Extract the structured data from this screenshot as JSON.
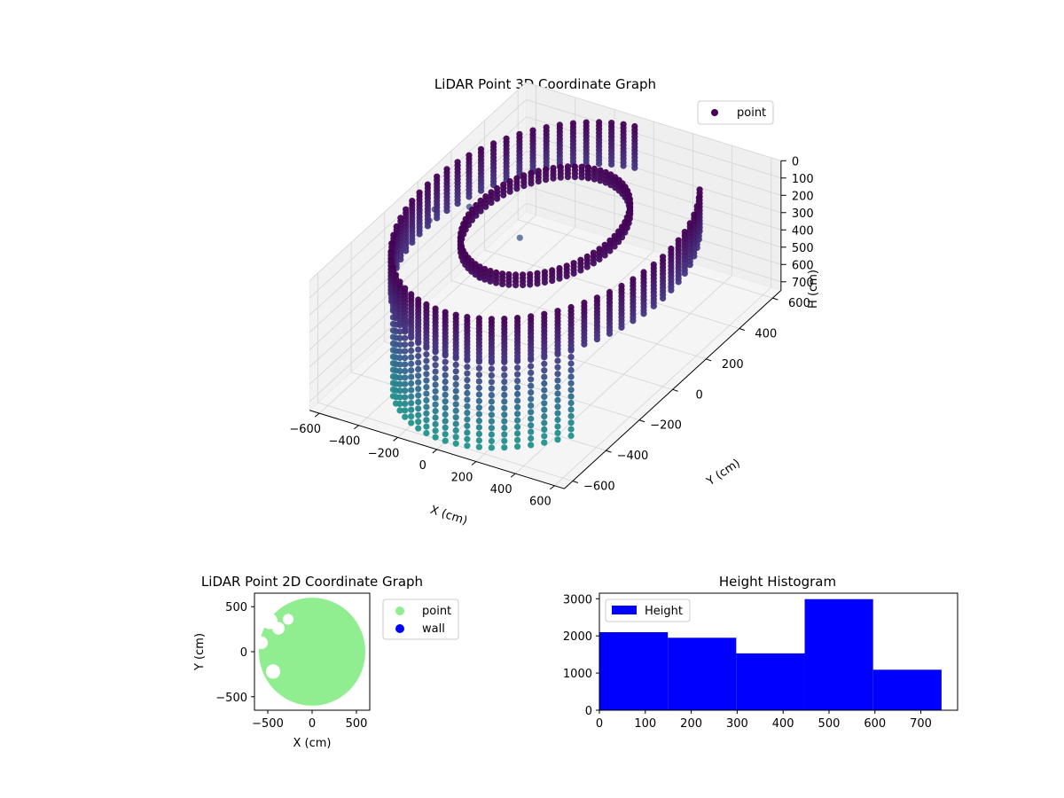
{
  "colors": {
    "viridis_low": "#440154",
    "viridis_mid_low": "#3b528b",
    "viridis_mid": "#21918c",
    "viridis_high": "#5ec962",
    "scatter2d": "#90ee90",
    "wall": "#0000ff",
    "hist": "#0000ff",
    "pane": "#f2f2f2",
    "grid": "#d4d4d4"
  },
  "chart_data": [
    {
      "type": "scatter",
      "title": "LiDAR Point 3D Coordinate Graph",
      "xlabel": "X (cm)",
      "ylabel": "Y (cm)",
      "zlabel": "H (cm)",
      "xlim": [
        -650,
        650
      ],
      "ylim": [
        -650,
        650
      ],
      "zlim": [
        750,
        0
      ],
      "x_ticks": [
        -600,
        -400,
        -200,
        0,
        200,
        400,
        600
      ],
      "y_ticks": [
        -600,
        -400,
        -200,
        0,
        200,
        400,
        600
      ],
      "z_ticks": [
        0,
        100,
        200,
        300,
        400,
        500,
        600,
        700
      ],
      "z_inverted": true,
      "colormap": "viridis",
      "grid": true,
      "legend": {
        "entries": [
          "point"
        ],
        "position": "top-right"
      },
      "shapes": [
        {
          "name": "outer-ring",
          "radius": 600,
          "angle_from": 95,
          "angle_to": 400,
          "h_from": 0,
          "h_to": 250,
          "h_step": 20
        },
        {
          "name": "front-wall",
          "radius": 600,
          "angle_from": 230,
          "angle_to": 320,
          "h_from": 250,
          "h_to": 760,
          "h_step": 38
        },
        {
          "name": "inner-ring",
          "radius": 330,
          "angle_from": 100,
          "angle_to": 460,
          "h_from": 0,
          "h_to": 60,
          "h_step": 20
        }
      ],
      "outliers": [
        {
          "x": -600,
          "y": 250,
          "h": 350
        },
        {
          "x": -650,
          "y": 100,
          "h": 250
        },
        {
          "x": -660,
          "y": 80,
          "h": 300
        },
        {
          "x": -400,
          "y": -350,
          "h": 420
        },
        {
          "x": -300,
          "y": 200,
          "h": 380
        },
        {
          "x": -250,
          "y": -100,
          "h": 330
        }
      ]
    },
    {
      "type": "scatter",
      "title": "LiDAR Point 2D Coordinate Graph",
      "xlabel": "X (cm)",
      "ylabel": "Y (cm)",
      "xlim": [
        -650,
        650
      ],
      "ylim": [
        -650,
        650
      ],
      "x_ticks": [
        -500,
        0,
        500
      ],
      "y_ticks": [
        -500,
        0,
        500
      ],
      "legend": {
        "entries": [
          "point",
          "wall"
        ],
        "position": "outside right"
      },
      "disc": {
        "center_x": 0,
        "center_y": 0,
        "radius": 600
      },
      "gaps": [
        {
          "x": -480,
          "y": 340,
          "r": 90
        },
        {
          "x": -380,
          "y": 260,
          "r": 70
        },
        {
          "x": -570,
          "y": 100,
          "r": 70
        },
        {
          "x": -440,
          "y": -220,
          "r": 80
        },
        {
          "x": -560,
          "y": -380,
          "r": 70
        },
        {
          "x": -270,
          "y": 360,
          "r": 60
        }
      ]
    },
    {
      "type": "bar",
      "title": "Height Histogram",
      "legend": {
        "entries": [
          "Height"
        ],
        "position": "top-left"
      },
      "bin_edges": [
        0,
        149,
        298,
        447,
        596,
        745
      ],
      "values": [
        2100,
        1950,
        1530,
        2990,
        1090
      ],
      "xlim": [
        0,
        780
      ],
      "ylim": [
        0,
        3150
      ],
      "x_ticks": [
        0,
        100,
        200,
        300,
        400,
        500,
        600,
        700
      ],
      "y_ticks": [
        0,
        1000,
        2000,
        3000
      ]
    }
  ]
}
